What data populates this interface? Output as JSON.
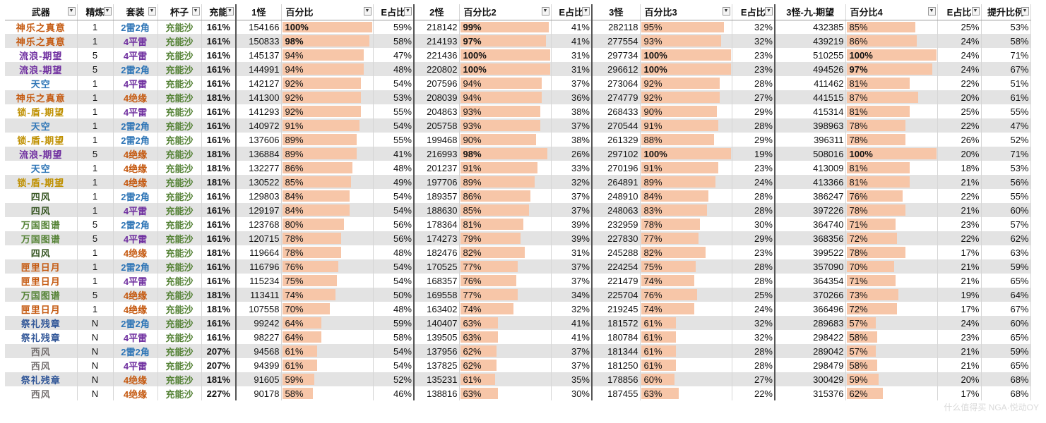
{
  "headers": [
    "武器",
    "精炼",
    "套装",
    "杯子",
    "充能",
    "1怪",
    "百分比",
    "E占比",
    "2怪",
    "百分比2",
    "E占比",
    "3怪",
    "百分比3",
    "E占比",
    "3怪-九-期望",
    "百分比4",
    "E占比",
    "提升比例"
  ],
  "colors": {
    "神乐之真意": "#c55a11",
    "流浪-期望": "#7030a0",
    "天空": "#2e75b6",
    "锁-盾-期望": "#bf9000",
    "四风": "#375623",
    "万国图谱": "#548235",
    "匣里日月": "#c55a11",
    "祭礼残章": "#2f5597",
    "西风": "#767171",
    "2雷2角": "#2e75b6",
    "4平雷": "#7030a0",
    "4绝缘": "#c55a11",
    "cup": "#548235",
    "bar": "#f7c6a8"
  },
  "rows": [
    [
      "神乐之真意",
      "1",
      "2雷2角",
      "充能沙",
      "161%",
      "154166",
      "100%",
      "59%",
      "218142",
      "99%",
      "41%",
      "282118",
      "95%",
      "32%",
      "432385",
      "85%",
      "25%",
      "53%"
    ],
    [
      "神乐之真意",
      "1",
      "4平雷",
      "充能沙",
      "161%",
      "150833",
      "98%",
      "58%",
      "214193",
      "97%",
      "41%",
      "277554",
      "93%",
      "32%",
      "439219",
      "86%",
      "24%",
      "58%"
    ],
    [
      "流浪-期望",
      "5",
      "4平雷",
      "充能沙",
      "161%",
      "145137",
      "94%",
      "47%",
      "221436",
      "100%",
      "31%",
      "297734",
      "100%",
      "23%",
      "510255",
      "100%",
      "24%",
      "71%"
    ],
    [
      "流浪-期望",
      "5",
      "2雷2角",
      "充能沙",
      "161%",
      "144991",
      "94%",
      "48%",
      "220802",
      "100%",
      "31%",
      "296612",
      "100%",
      "23%",
      "494526",
      "97%",
      "24%",
      "67%"
    ],
    [
      "天空",
      "1",
      "4平雷",
      "充能沙",
      "161%",
      "142127",
      "92%",
      "54%",
      "207596",
      "94%",
      "37%",
      "273064",
      "92%",
      "28%",
      "411462",
      "81%",
      "22%",
      "51%"
    ],
    [
      "神乐之真意",
      "1",
      "4绝缘",
      "充能沙",
      "181%",
      "141300",
      "92%",
      "53%",
      "208039",
      "94%",
      "36%",
      "274779",
      "92%",
      "27%",
      "441515",
      "87%",
      "20%",
      "61%"
    ],
    [
      "锁-盾-期望",
      "1",
      "4平雷",
      "充能沙",
      "161%",
      "141293",
      "92%",
      "55%",
      "204863",
      "93%",
      "38%",
      "268433",
      "90%",
      "29%",
      "415314",
      "81%",
      "25%",
      "55%"
    ],
    [
      "天空",
      "1",
      "2雷2角",
      "充能沙",
      "161%",
      "140972",
      "91%",
      "54%",
      "205758",
      "93%",
      "37%",
      "270544",
      "91%",
      "28%",
      "398963",
      "78%",
      "22%",
      "47%"
    ],
    [
      "锁-盾-期望",
      "1",
      "2雷2角",
      "充能沙",
      "161%",
      "137606",
      "89%",
      "55%",
      "199468",
      "90%",
      "38%",
      "261329",
      "88%",
      "29%",
      "396311",
      "78%",
      "26%",
      "52%"
    ],
    [
      "流浪-期望",
      "5",
      "4绝缘",
      "充能沙",
      "181%",
      "136884",
      "89%",
      "41%",
      "216993",
      "98%",
      "26%",
      "297102",
      "100%",
      "19%",
      "508016",
      "100%",
      "20%",
      "71%"
    ],
    [
      "天空",
      "1",
      "4绝缘",
      "充能沙",
      "181%",
      "132277",
      "86%",
      "48%",
      "201237",
      "91%",
      "33%",
      "270196",
      "91%",
      "23%",
      "413009",
      "81%",
      "18%",
      "53%"
    ],
    [
      "锁-盾-期望",
      "1",
      "4绝缘",
      "充能沙",
      "181%",
      "130522",
      "85%",
      "49%",
      "197706",
      "89%",
      "32%",
      "264891",
      "89%",
      "24%",
      "413366",
      "81%",
      "21%",
      "56%"
    ],
    [
      "四风",
      "1",
      "2雷2角",
      "充能沙",
      "161%",
      "129803",
      "84%",
      "54%",
      "189357",
      "86%",
      "37%",
      "248910",
      "84%",
      "28%",
      "386247",
      "76%",
      "22%",
      "55%"
    ],
    [
      "四风",
      "1",
      "4平雷",
      "充能沙",
      "161%",
      "129197",
      "84%",
      "54%",
      "188630",
      "85%",
      "37%",
      "248063",
      "83%",
      "28%",
      "397226",
      "78%",
      "21%",
      "60%"
    ],
    [
      "万国图谱",
      "5",
      "2雷2角",
      "充能沙",
      "161%",
      "123768",
      "80%",
      "56%",
      "178364",
      "81%",
      "39%",
      "232959",
      "78%",
      "30%",
      "364740",
      "71%",
      "23%",
      "57%"
    ],
    [
      "万国图谱",
      "5",
      "4平雷",
      "充能沙",
      "161%",
      "120715",
      "78%",
      "56%",
      "174273",
      "79%",
      "39%",
      "227830",
      "77%",
      "29%",
      "368356",
      "72%",
      "22%",
      "62%"
    ],
    [
      "四风",
      "1",
      "4绝缘",
      "充能沙",
      "181%",
      "119664",
      "78%",
      "48%",
      "182476",
      "82%",
      "31%",
      "245288",
      "82%",
      "23%",
      "399522",
      "78%",
      "17%",
      "63%"
    ],
    [
      "匣里日月",
      "1",
      "2雷2角",
      "充能沙",
      "161%",
      "116796",
      "76%",
      "54%",
      "170525",
      "77%",
      "37%",
      "224254",
      "75%",
      "28%",
      "357090",
      "70%",
      "21%",
      "59%"
    ],
    [
      "匣里日月",
      "1",
      "4平雷",
      "充能沙",
      "161%",
      "115234",
      "75%",
      "54%",
      "168357",
      "76%",
      "37%",
      "221479",
      "74%",
      "28%",
      "364354",
      "71%",
      "21%",
      "65%"
    ],
    [
      "万国图谱",
      "5",
      "4绝缘",
      "充能沙",
      "181%",
      "113411",
      "74%",
      "50%",
      "169558",
      "77%",
      "34%",
      "225704",
      "76%",
      "25%",
      "370266",
      "73%",
      "19%",
      "64%"
    ],
    [
      "匣里日月",
      "1",
      "4绝缘",
      "充能沙",
      "181%",
      "107558",
      "70%",
      "48%",
      "163402",
      "74%",
      "32%",
      "219245",
      "74%",
      "24%",
      "366496",
      "72%",
      "17%",
      "67%"
    ],
    [
      "祭礼残章",
      "N",
      "2雷2角",
      "充能沙",
      "161%",
      "99242",
      "64%",
      "59%",
      "140407",
      "63%",
      "41%",
      "181572",
      "61%",
      "32%",
      "289683",
      "57%",
      "24%",
      "60%"
    ],
    [
      "祭礼残章",
      "N",
      "4平雷",
      "充能沙",
      "161%",
      "98227",
      "64%",
      "58%",
      "139505",
      "63%",
      "41%",
      "180784",
      "61%",
      "32%",
      "298422",
      "58%",
      "23%",
      "65%"
    ],
    [
      "西风",
      "N",
      "2雷2角",
      "充能沙",
      "207%",
      "94568",
      "61%",
      "54%",
      "137956",
      "62%",
      "37%",
      "181344",
      "61%",
      "28%",
      "289042",
      "57%",
      "21%",
      "59%"
    ],
    [
      "西风",
      "N",
      "4平雷",
      "充能沙",
      "207%",
      "94399",
      "61%",
      "54%",
      "137825",
      "62%",
      "37%",
      "181250",
      "61%",
      "28%",
      "298479",
      "58%",
      "21%",
      "65%"
    ],
    [
      "祭礼残章",
      "N",
      "4绝缘",
      "充能沙",
      "181%",
      "91605",
      "59%",
      "52%",
      "135231",
      "61%",
      "35%",
      "178856",
      "60%",
      "27%",
      "300429",
      "59%",
      "20%",
      "68%"
    ],
    [
      "西风",
      "N",
      "4绝缘",
      "充能沙",
      "227%",
      "90178",
      "58%",
      "46%",
      "138816",
      "63%",
      "30%",
      "187455",
      "63%",
      "22%",
      "315376",
      "62%",
      "17%",
      "68%"
    ]
  ],
  "watermark": "什么值得买 NGA·悦动OY"
}
